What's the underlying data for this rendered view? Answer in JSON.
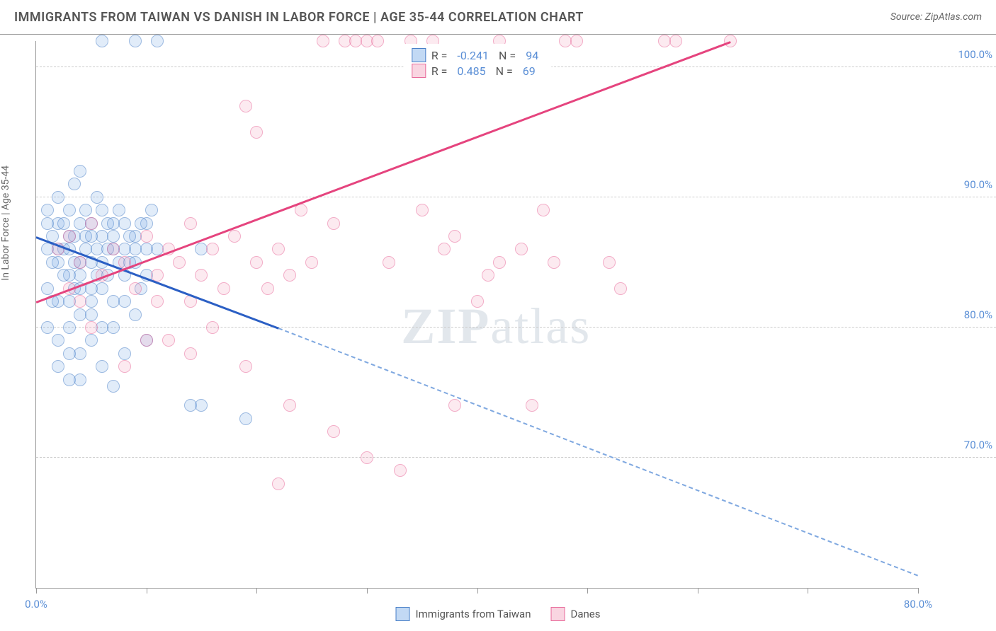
{
  "title": "IMMIGRANTS FROM TAIWAN VS DANISH IN LABOR FORCE | AGE 35-44 CORRELATION CHART",
  "source_label": "Source: ZipAtlas.com",
  "y_axis_label": "In Labor Force | Age 35-44",
  "watermark": {
    "zip": "ZIP",
    "atlas": "atlas"
  },
  "chart": {
    "type": "scatter",
    "x_domain": [
      0,
      80
    ],
    "y_domain": [
      60,
      102
    ],
    "x_ticks": [
      0,
      10,
      20,
      30,
      40,
      50,
      60,
      70,
      80
    ],
    "x_tick_labels": {
      "0": "0.0%",
      "80": "80.0%"
    },
    "y_ticks": [
      70,
      80,
      90,
      100
    ],
    "y_tick_labels": {
      "70": "70.0%",
      "80": "80.0%",
      "90": "90.0%",
      "100": "100.0%"
    },
    "grid_y": [
      70,
      80,
      90,
      100
    ],
    "background_color": "#ffffff",
    "grid_color": "#cccccc",
    "border_color": "#999999",
    "axis_label_color": "#5b8fd6",
    "series": [
      {
        "name": "Immigrants from Taiwan",
        "color_fill": "rgba(120,170,230,0.4)",
        "color_border": "#4a80c8",
        "trend_color": "#2b5fc4",
        "R": "-0.241",
        "N": "94",
        "trend": {
          "x1": 0,
          "y1": 87,
          "x2_solid": 22,
          "y2_solid": 80,
          "x2_dash": 80,
          "y2_dash": 61
        },
        "points": [
          [
            1,
            86
          ],
          [
            1.5,
            87
          ],
          [
            2,
            85
          ],
          [
            2,
            88
          ],
          [
            2.5,
            86
          ],
          [
            3,
            89
          ],
          [
            3,
            84
          ],
          [
            3.5,
            91
          ],
          [
            3.5,
            87
          ],
          [
            4,
            85
          ],
          [
            4,
            92
          ],
          [
            4.5,
            86
          ],
          [
            5,
            88
          ],
          [
            5,
            83
          ],
          [
            5.5,
            90
          ],
          [
            6,
            87
          ],
          [
            6,
            102
          ],
          [
            6.5,
            84
          ],
          [
            7,
            86
          ],
          [
            7,
            80
          ],
          [
            7.5,
            89
          ],
          [
            8,
            88
          ],
          [
            8,
            78
          ],
          [
            8.5,
            85
          ],
          [
            9,
            87
          ],
          [
            9,
            102
          ],
          [
            9.5,
            83
          ],
          [
            10,
            86
          ],
          [
            10,
            79
          ],
          [
            10.5,
            89
          ],
          [
            11,
            102
          ],
          [
            4,
            81
          ],
          [
            5,
            79
          ],
          [
            6,
            77
          ],
          [
            7,
            75.5
          ],
          [
            3,
            80
          ],
          [
            2,
            82
          ],
          [
            1,
            83
          ],
          [
            1,
            89
          ],
          [
            2,
            90
          ],
          [
            3,
            86
          ],
          [
            4,
            88
          ],
          [
            5,
            85
          ],
          [
            6,
            89
          ],
          [
            7,
            87
          ],
          [
            8,
            84
          ],
          [
            9,
            86
          ],
          [
            10,
            88
          ],
          [
            2.5,
            84
          ],
          [
            3.5,
            85
          ],
          [
            4.5,
            89
          ],
          [
            5.5,
            86
          ],
          [
            6.5,
            88
          ],
          [
            7.5,
            85
          ],
          [
            8.5,
            87
          ],
          [
            9.5,
            88
          ],
          [
            1.5,
            85
          ],
          [
            2.5,
            88
          ],
          [
            3.5,
            83
          ],
          [
            4.5,
            87
          ],
          [
            5.5,
            84
          ],
          [
            6.5,
            86
          ],
          [
            1,
            88
          ],
          [
            2,
            86
          ],
          [
            3,
            87
          ],
          [
            4,
            84
          ],
          [
            5,
            87
          ],
          [
            6,
            85
          ],
          [
            7,
            88
          ],
          [
            8,
            86
          ],
          [
            9,
            85
          ],
          [
            10,
            84
          ],
          [
            11,
            86
          ],
          [
            3,
            76
          ],
          [
            4,
            78
          ],
          [
            5,
            82
          ],
          [
            6,
            80
          ],
          [
            2,
            79
          ],
          [
            3,
            78
          ],
          [
            4,
            76
          ],
          [
            14,
            74
          ],
          [
            15,
            74
          ],
          [
            19,
            73
          ],
          [
            15,
            86
          ],
          [
            8,
            82
          ],
          [
            9,
            81
          ],
          [
            6,
            83
          ],
          [
            7,
            82
          ],
          [
            5,
            81
          ],
          [
            4,
            83
          ],
          [
            3,
            82
          ],
          [
            2,
            77
          ],
          [
            1,
            80
          ],
          [
            1.5,
            82
          ]
        ]
      },
      {
        "name": "Danes",
        "color_fill": "rgba(240,150,180,0.35)",
        "color_border": "#e86a9a",
        "trend_color": "#e5447e",
        "R": "0.485",
        "N": "69",
        "trend": {
          "x1": 0,
          "y1": 82,
          "x2_solid": 63,
          "y2_solid": 102
        },
        "points": [
          [
            2,
            86
          ],
          [
            3,
            87
          ],
          [
            3,
            83
          ],
          [
            4,
            85
          ],
          [
            4,
            82
          ],
          [
            5,
            88
          ],
          [
            5,
            80
          ],
          [
            6,
            84
          ],
          [
            7,
            86
          ],
          [
            8,
            85
          ],
          [
            8,
            77
          ],
          [
            9,
            83
          ],
          [
            10,
            87
          ],
          [
            10,
            79
          ],
          [
            11,
            84
          ],
          [
            12,
            86
          ],
          [
            13,
            85
          ],
          [
            14,
            88
          ],
          [
            14,
            78
          ],
          [
            15,
            84
          ],
          [
            16,
            86
          ],
          [
            17,
            83
          ],
          [
            18,
            87
          ],
          [
            19,
            77
          ],
          [
            20,
            85
          ],
          [
            20,
            95
          ],
          [
            21,
            83
          ],
          [
            22,
            86
          ],
          [
            23,
            84
          ],
          [
            24,
            89
          ],
          [
            25,
            85
          ],
          [
            23,
            74
          ],
          [
            26,
            102
          ],
          [
            27,
            72
          ],
          [
            27,
            88
          ],
          [
            28,
            102
          ],
          [
            29,
            102
          ],
          [
            30,
            102
          ],
          [
            31,
            102
          ],
          [
            30,
            70
          ],
          [
            32,
            85
          ],
          [
            33,
            69
          ],
          [
            34,
            102
          ],
          [
            35,
            89
          ],
          [
            36,
            102
          ],
          [
            37,
            86
          ],
          [
            38,
            87
          ],
          [
            38,
            74
          ],
          [
            40,
            82
          ],
          [
            41,
            84
          ],
          [
            42,
            85
          ],
          [
            42,
            102
          ],
          [
            44,
            86
          ],
          [
            45,
            74
          ],
          [
            46,
            89
          ],
          [
            47,
            85
          ],
          [
            48,
            102
          ],
          [
            49,
            102
          ],
          [
            52,
            85
          ],
          [
            53,
            83
          ],
          [
            57,
            102
          ],
          [
            58,
            102
          ],
          [
            63,
            102
          ],
          [
            19,
            97
          ],
          [
            22,
            68
          ],
          [
            14,
            82
          ],
          [
            16,
            80
          ],
          [
            11,
            82
          ],
          [
            12,
            79
          ]
        ]
      }
    ]
  },
  "legend_top": {
    "rows": [
      {
        "swatch": "blue",
        "R_label": "R =",
        "R_val": "-0.241",
        "N_label": "N =",
        "N_val": "94"
      },
      {
        "swatch": "pink",
        "R_label": "R =",
        "R_val": "0.485",
        "N_label": "N =",
        "N_val": "69"
      }
    ]
  },
  "legend_bottom": [
    {
      "swatch": "blue",
      "label": "Immigrants from Taiwan"
    },
    {
      "swatch": "pink",
      "label": "Danes"
    }
  ]
}
